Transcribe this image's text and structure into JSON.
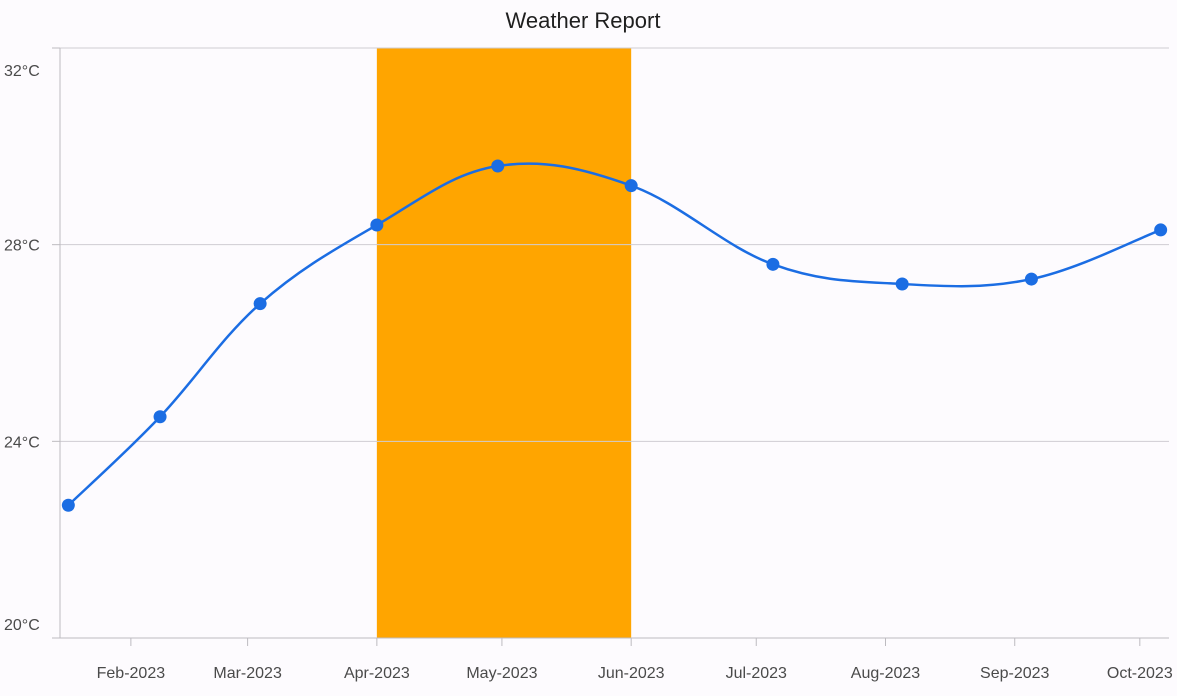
{
  "chart_data": {
    "type": "line",
    "title": "Weather Report",
    "xlabel": "",
    "ylabel": "",
    "x_tick_labels": [
      "Feb-2023",
      "Mar-2023",
      "Apr-2023",
      "May-2023",
      "Jun-2023",
      "Jul-2023",
      "Aug-2023",
      "Sep-2023",
      "Oct-2023"
    ],
    "y_tick_labels": [
      "20°C",
      "24°C",
      "28°C",
      "32°C"
    ],
    "ylim": [
      20,
      32
    ],
    "xlim": [
      "2023-01-15",
      "2023-10-08"
    ],
    "grid": "horizontal",
    "highlight_band": {
      "from": "2023-04-01",
      "to": "2023-06-01",
      "color": "#ffa500"
    },
    "series": [
      {
        "color": "#1b6de3",
        "smooth": true,
        "points": [
          {
            "x": "2023-01-17",
            "y": 22.7
          },
          {
            "x": "2023-02-08",
            "y": 24.5
          },
          {
            "x": "2023-03-04",
            "y": 26.8
          },
          {
            "x": "2023-04-01",
            "y": 28.4
          },
          {
            "x": "2023-04-30",
            "y": 29.6
          },
          {
            "x": "2023-06-01",
            "y": 29.2
          },
          {
            "x": "2023-07-05",
            "y": 27.6
          },
          {
            "x": "2023-08-05",
            "y": 27.2
          },
          {
            "x": "2023-09-05",
            "y": 27.3
          },
          {
            "x": "2023-10-06",
            "y": 28.3
          }
        ]
      }
    ]
  }
}
